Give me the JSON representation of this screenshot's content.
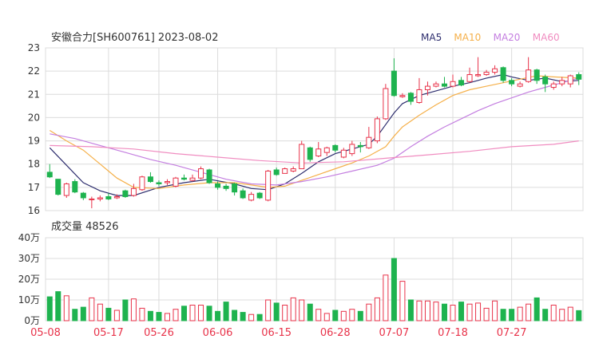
{
  "header": {
    "stock_title": "安徽合力[SH600761] 2023-08-02",
    "legend": [
      {
        "label": "MA5",
        "color": "#2e2e6e"
      },
      {
        "label": "MA10",
        "color": "#f5b04a"
      },
      {
        "label": "MA20",
        "color": "#c47fe0"
      },
      {
        "label": "MA60",
        "color": "#f08cc0"
      }
    ]
  },
  "volume_label": "成交量 48526",
  "colors": {
    "up": "#e8334a",
    "down": "#1eb34f",
    "grid": "#dcdcdc",
    "axis_text": "#333333",
    "date_text": "#e8334a"
  },
  "chart_data": {
    "type": "candlestick",
    "price_axis": {
      "ticks": [
        "23",
        "22",
        "21",
        "20",
        "19",
        "18",
        "17",
        "16"
      ],
      "ylim": [
        16,
        23
      ]
    },
    "volume_axis": {
      "ticks": [
        "40万",
        "30万",
        "20万",
        "10万",
        "0万"
      ],
      "ylim": [
        0,
        400000
      ]
    },
    "x_labels": [
      "05-08",
      "05-17",
      "05-26",
      "06-06",
      "06-15",
      "06-28",
      "07-07",
      "07-18",
      "07-27"
    ],
    "x_label_index": [
      0,
      7,
      13,
      20,
      27,
      34,
      41,
      48,
      55
    ],
    "candles": [
      {
        "o": 17.65,
        "c": 17.45,
        "h": 18.0,
        "l": 17.4,
        "v": 115000
      },
      {
        "o": 17.35,
        "c": 16.7,
        "h": 17.35,
        "l": 16.65,
        "v": 140000
      },
      {
        "o": 16.65,
        "c": 17.15,
        "h": 17.2,
        "l": 16.55,
        "v": 120000
      },
      {
        "o": 17.25,
        "c": 16.8,
        "h": 17.35,
        "l": 16.75,
        "v": 55000
      },
      {
        "o": 16.75,
        "c": 16.55,
        "h": 16.8,
        "l": 16.45,
        "v": 65000
      },
      {
        "o": 16.5,
        "c": 16.5,
        "h": 16.6,
        "l": 16.1,
        "v": 110000
      },
      {
        "o": 16.5,
        "c": 16.55,
        "h": 16.65,
        "l": 16.4,
        "v": 80000
      },
      {
        "o": 16.6,
        "c": 16.5,
        "h": 16.75,
        "l": 16.45,
        "v": 60000
      },
      {
        "o": 16.55,
        "c": 16.6,
        "h": 16.7,
        "l": 16.5,
        "v": 50000
      },
      {
        "o": 16.85,
        "c": 16.6,
        "h": 16.9,
        "l": 16.55,
        "v": 100000
      },
      {
        "o": 16.65,
        "c": 16.95,
        "h": 17.15,
        "l": 16.6,
        "v": 105000
      },
      {
        "o": 16.9,
        "c": 17.45,
        "h": 17.5,
        "l": 16.85,
        "v": 60000
      },
      {
        "o": 17.45,
        "c": 17.25,
        "h": 17.65,
        "l": 17.2,
        "v": 45000
      },
      {
        "o": 17.2,
        "c": 17.15,
        "h": 17.3,
        "l": 17.05,
        "v": 40000
      },
      {
        "o": 17.2,
        "c": 17.25,
        "h": 17.35,
        "l": 17.1,
        "v": 35000
      },
      {
        "o": 17.05,
        "c": 17.4,
        "h": 17.45,
        "l": 17.0,
        "v": 55000
      },
      {
        "o": 17.4,
        "c": 17.35,
        "h": 17.55,
        "l": 17.3,
        "v": 70000
      },
      {
        "o": 17.3,
        "c": 17.4,
        "h": 17.55,
        "l": 17.25,
        "v": 75000
      },
      {
        "o": 17.4,
        "c": 17.8,
        "h": 17.9,
        "l": 17.35,
        "v": 75000
      },
      {
        "o": 17.75,
        "c": 17.2,
        "h": 17.8,
        "l": 17.15,
        "v": 70000
      },
      {
        "o": 17.15,
        "c": 17.0,
        "h": 17.25,
        "l": 16.9,
        "v": 45000
      },
      {
        "o": 17.05,
        "c": 16.95,
        "h": 17.15,
        "l": 16.85,
        "v": 90000
      },
      {
        "o": 17.15,
        "c": 16.8,
        "h": 17.2,
        "l": 16.65,
        "v": 50000
      },
      {
        "o": 16.85,
        "c": 16.55,
        "h": 16.95,
        "l": 16.5,
        "v": 40000
      },
      {
        "o": 16.45,
        "c": 16.7,
        "h": 16.8,
        "l": 16.4,
        "v": 30000
      },
      {
        "o": 16.75,
        "c": 16.55,
        "h": 16.8,
        "l": 16.5,
        "v": 30000
      },
      {
        "o": 16.45,
        "c": 17.7,
        "h": 17.75,
        "l": 16.4,
        "v": 100000
      },
      {
        "o": 17.75,
        "c": 17.55,
        "h": 17.85,
        "l": 17.5,
        "v": 85000
      },
      {
        "o": 17.6,
        "c": 17.8,
        "h": 17.85,
        "l": 17.6,
        "v": 75000
      },
      {
        "o": 17.7,
        "c": 17.8,
        "h": 17.9,
        "l": 17.65,
        "v": 110000
      },
      {
        "o": 17.8,
        "c": 18.85,
        "h": 19.0,
        "l": 17.8,
        "v": 100000
      },
      {
        "o": 18.7,
        "c": 18.2,
        "h": 18.75,
        "l": 18.1,
        "v": 80000
      },
      {
        "o": 18.35,
        "c": 18.65,
        "h": 18.95,
        "l": 18.3,
        "v": 55000
      },
      {
        "o": 18.5,
        "c": 18.7,
        "h": 18.75,
        "l": 18.35,
        "v": 35000
      },
      {
        "o": 18.8,
        "c": 18.6,
        "h": 18.85,
        "l": 18.5,
        "v": 50000
      },
      {
        "o": 18.3,
        "c": 18.6,
        "h": 18.7,
        "l": 18.25,
        "v": 45000
      },
      {
        "o": 18.45,
        "c": 18.85,
        "h": 19.0,
        "l": 18.35,
        "v": 55000
      },
      {
        "o": 18.8,
        "c": 18.75,
        "h": 18.95,
        "l": 18.5,
        "v": 45000
      },
      {
        "o": 18.7,
        "c": 19.15,
        "h": 19.6,
        "l": 18.65,
        "v": 80000
      },
      {
        "o": 19.0,
        "c": 19.95,
        "h": 20.05,
        "l": 18.9,
        "v": 110000
      },
      {
        "o": 19.95,
        "c": 21.25,
        "h": 21.45,
        "l": 19.9,
        "v": 220000
      },
      {
        "o": 22.0,
        "c": 20.95,
        "h": 22.55,
        "l": 20.9,
        "v": 300000
      },
      {
        "o": 20.9,
        "c": 20.95,
        "h": 21.05,
        "l": 20.85,
        "v": 190000
      },
      {
        "o": 21.05,
        "c": 20.7,
        "h": 21.1,
        "l": 20.55,
        "v": 100000
      },
      {
        "o": 20.65,
        "c": 21.2,
        "h": 21.7,
        "l": 20.6,
        "v": 95000
      },
      {
        "o": 21.2,
        "c": 21.35,
        "h": 21.55,
        "l": 20.95,
        "v": 95000
      },
      {
        "o": 21.35,
        "c": 21.45,
        "h": 21.55,
        "l": 21.3,
        "v": 90000
      },
      {
        "o": 21.45,
        "c": 21.35,
        "h": 21.75,
        "l": 21.3,
        "v": 80000
      },
      {
        "o": 21.35,
        "c": 21.55,
        "h": 21.85,
        "l": 21.3,
        "v": 75000
      },
      {
        "o": 21.6,
        "c": 21.4,
        "h": 21.75,
        "l": 21.35,
        "v": 90000
      },
      {
        "o": 21.55,
        "c": 21.85,
        "h": 22.15,
        "l": 21.5,
        "v": 80000
      },
      {
        "o": 21.8,
        "c": 21.85,
        "h": 22.6,
        "l": 21.75,
        "v": 85000
      },
      {
        "o": 21.85,
        "c": 21.95,
        "h": 22.05,
        "l": 21.8,
        "v": 60000
      },
      {
        "o": 21.95,
        "c": 22.1,
        "h": 22.25,
        "l": 21.85,
        "v": 95000
      },
      {
        "o": 22.15,
        "c": 21.6,
        "h": 22.2,
        "l": 21.5,
        "v": 55000
      },
      {
        "o": 21.6,
        "c": 21.45,
        "h": 21.7,
        "l": 21.35,
        "v": 55000
      },
      {
        "o": 21.35,
        "c": 21.45,
        "h": 21.55,
        "l": 21.3,
        "v": 65000
      },
      {
        "o": 21.55,
        "c": 22.05,
        "h": 22.6,
        "l": 21.5,
        "v": 80000
      },
      {
        "o": 22.05,
        "c": 21.6,
        "h": 22.1,
        "l": 21.45,
        "v": 110000
      },
      {
        "o": 21.75,
        "c": 21.45,
        "h": 21.85,
        "l": 21.1,
        "v": 55000
      },
      {
        "o": 21.3,
        "c": 21.45,
        "h": 21.55,
        "l": 21.2,
        "v": 75000
      },
      {
        "o": 21.45,
        "c": 21.6,
        "h": 21.75,
        "l": 21.35,
        "v": 55000
      },
      {
        "o": 21.45,
        "c": 21.8,
        "h": 21.85,
        "l": 21.3,
        "v": 65000
      },
      {
        "o": 21.85,
        "c": 21.65,
        "h": 21.95,
        "l": 21.4,
        "v": 48526
      }
    ],
    "ma": {
      "MA5": [
        [
          0,
          18.7
        ],
        [
          2,
          17.95
        ],
        [
          4,
          17.2
        ],
        [
          6,
          16.85
        ],
        [
          8,
          16.65
        ],
        [
          10,
          16.65
        ],
        [
          13,
          17.0
        ],
        [
          16,
          17.2
        ],
        [
          19,
          17.35
        ],
        [
          22,
          17.15
        ],
        [
          24,
          16.95
        ],
        [
          26,
          16.9
        ],
        [
          28,
          17.15
        ],
        [
          30,
          17.6
        ],
        [
          32,
          18.1
        ],
        [
          34,
          18.45
        ],
        [
          36,
          18.65
        ],
        [
          38,
          18.85
        ],
        [
          39,
          19.2
        ],
        [
          40,
          19.7
        ],
        [
          41,
          20.2
        ],
        [
          42,
          20.6
        ],
        [
          44,
          20.95
        ],
        [
          46,
          21.15
        ],
        [
          48,
          21.35
        ],
        [
          50,
          21.5
        ],
        [
          52,
          21.7
        ],
        [
          54,
          21.85
        ],
        [
          55,
          21.75
        ],
        [
          57,
          21.6
        ],
        [
          59,
          21.7
        ],
        [
          61,
          21.55
        ],
        [
          63,
          21.6
        ]
      ],
      "MA10": [
        [
          0,
          19.45
        ],
        [
          2,
          19.0
        ],
        [
          4,
          18.6
        ],
        [
          6,
          18.0
        ],
        [
          8,
          17.4
        ],
        [
          10,
          17.0
        ],
        [
          13,
          16.95
        ],
        [
          16,
          17.1
        ],
        [
          19,
          17.2
        ],
        [
          22,
          17.2
        ],
        [
          24,
          17.1
        ],
        [
          26,
          17.0
        ],
        [
          28,
          17.05
        ],
        [
          30,
          17.3
        ],
        [
          32,
          17.55
        ],
        [
          34,
          17.8
        ],
        [
          36,
          18.05
        ],
        [
          38,
          18.35
        ],
        [
          40,
          18.75
        ],
        [
          41,
          19.2
        ],
        [
          42,
          19.6
        ],
        [
          44,
          20.1
        ],
        [
          46,
          20.55
        ],
        [
          48,
          20.95
        ],
        [
          50,
          21.2
        ],
        [
          52,
          21.35
        ],
        [
          54,
          21.5
        ],
        [
          56,
          21.65
        ],
        [
          58,
          21.8
        ],
        [
          60,
          21.75
        ],
        [
          63,
          21.7
        ]
      ],
      "MA20": [
        [
          0,
          19.3
        ],
        [
          3,
          19.1
        ],
        [
          6,
          18.8
        ],
        [
          9,
          18.5
        ],
        [
          12,
          18.2
        ],
        [
          15,
          17.95
        ],
        [
          18,
          17.65
        ],
        [
          21,
          17.35
        ],
        [
          24,
          17.15
        ],
        [
          27,
          17.1
        ],
        [
          30,
          17.25
        ],
        [
          33,
          17.45
        ],
        [
          36,
          17.7
        ],
        [
          39,
          17.95
        ],
        [
          41,
          18.25
        ],
        [
          43,
          18.75
        ],
        [
          45,
          19.2
        ],
        [
          47,
          19.6
        ],
        [
          49,
          19.95
        ],
        [
          51,
          20.3
        ],
        [
          53,
          20.6
        ],
        [
          55,
          20.85
        ],
        [
          57,
          21.1
        ],
        [
          59,
          21.3
        ],
        [
          61,
          21.5
        ],
        [
          63,
          21.7
        ]
      ],
      "MA60": [
        [
          0,
          18.8
        ],
        [
          5,
          18.75
        ],
        [
          10,
          18.65
        ],
        [
          15,
          18.45
        ],
        [
          20,
          18.3
        ],
        [
          25,
          18.15
        ],
        [
          30,
          18.05
        ],
        [
          35,
          18.1
        ],
        [
          40,
          18.25
        ],
        [
          45,
          18.4
        ],
        [
          50,
          18.55
        ],
        [
          55,
          18.75
        ],
        [
          60,
          18.85
        ],
        [
          63,
          19.0
        ]
      ]
    }
  }
}
